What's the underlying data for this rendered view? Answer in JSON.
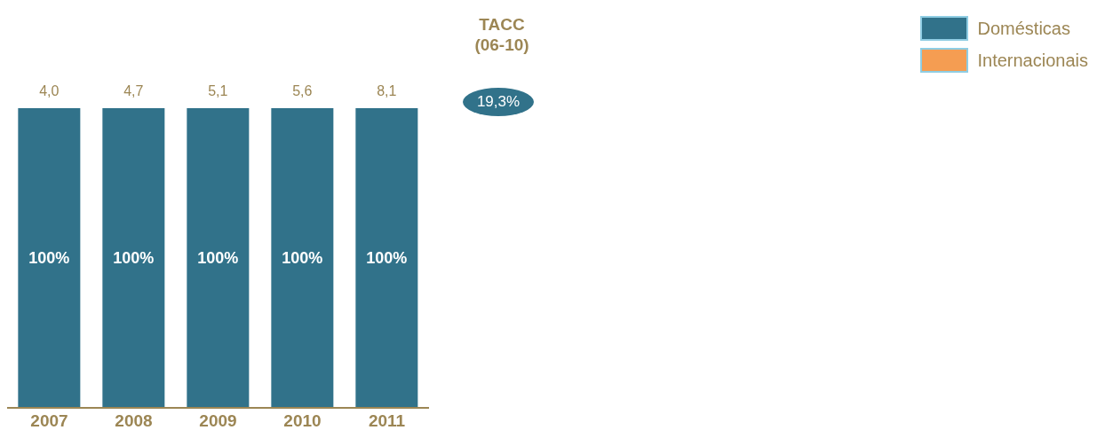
{
  "chart_data": {
    "type": "bar",
    "stacked": true,
    "categories": [
      "2007",
      "2008",
      "2009",
      "2010",
      "2011"
    ],
    "series": [
      {
        "name": "Domésticas",
        "color": "#31728a",
        "values": [
          100,
          100,
          100,
          100,
          100
        ],
        "value_labels": [
          "100%",
          "100%",
          "100%",
          "100%",
          "100%"
        ]
      },
      {
        "name": "Internacionais",
        "color": "#f59d52",
        "values": [
          0,
          0,
          0,
          0,
          0
        ]
      }
    ],
    "annotations": [
      "TACC (06-10)",
      "19,3%",
      {
        "text": "4,0",
        "x": "2007",
        "y": 100
      },
      {
        "text": "4,7",
        "x": "2008",
        "y": 100
      },
      {
        "text": "5,1",
        "x": "2009",
        "y": 100
      },
      {
        "text": "5,6",
        "x": "2010",
        "y": 100
      },
      {
        "text": "8,1",
        "x": "2011",
        "y": 100
      }
    ],
    "legend": "top right",
    "grid": false
  }
}
